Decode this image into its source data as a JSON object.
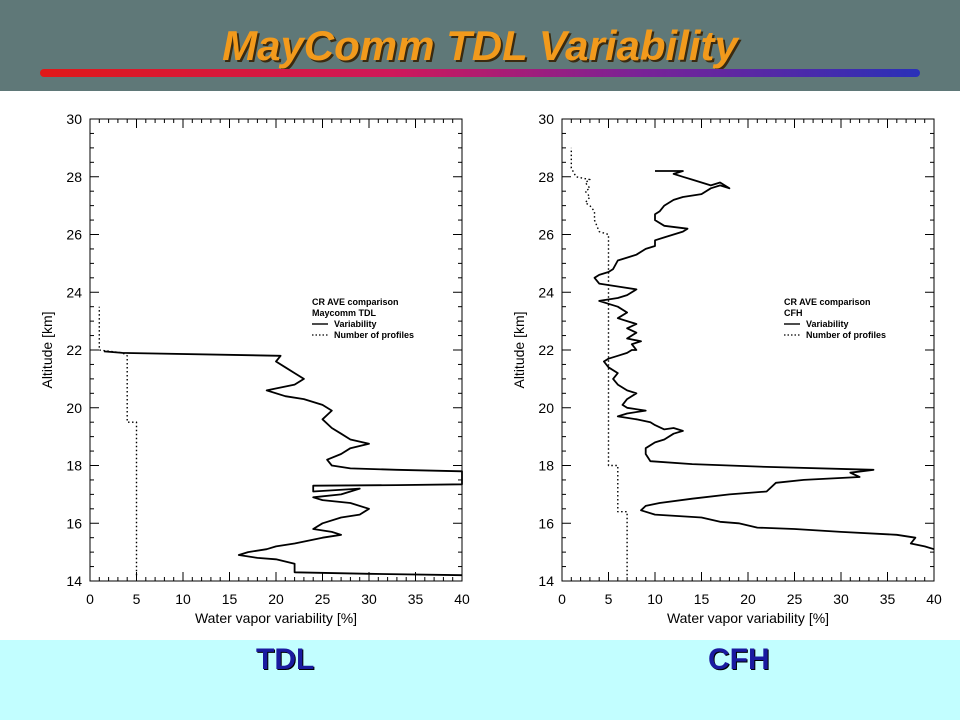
{
  "slide": {
    "title": "MayComm TDL Variability",
    "colors": {
      "header_bg": "#5f7878",
      "title": "#f29a1c",
      "footer_bg": "#c2feff",
      "panel_label": "#1a1aa0"
    }
  },
  "panels": [
    {
      "label": "TDL"
    },
    {
      "label": "CFH"
    }
  ],
  "chart_data": [
    {
      "type": "line",
      "xlabel": "Water vapor variability [%]",
      "ylabel": "Altitude [km]",
      "xlim": [
        0,
        40
      ],
      "ylim": [
        14,
        30
      ],
      "xticks": [
        0,
        5,
        10,
        15,
        20,
        25,
        30,
        35,
        40
      ],
      "yticks": [
        14,
        16,
        18,
        20,
        22,
        24,
        26,
        28,
        30
      ],
      "grid": false,
      "legend_position": "right",
      "legend": {
        "title_lines": [
          "CR AVE comparison",
          "Maycomm TDL"
        ],
        "entries": [
          "Variability",
          "Number of profiles"
        ]
      },
      "series": [
        {
          "name": "Variability",
          "style": "solid",
          "points": [
            [
              40,
              14.2
            ],
            [
              30,
              14.25
            ],
            [
              22,
              14.3
            ],
            [
              22,
              14.6
            ],
            [
              20,
              14.75
            ],
            [
              18,
              14.8
            ],
            [
              16,
              14.9
            ],
            [
              17,
              15.0
            ],
            [
              19,
              15.1
            ],
            [
              20,
              15.2
            ],
            [
              22,
              15.3
            ],
            [
              25,
              15.5
            ],
            [
              27,
              15.6
            ],
            [
              26,
              15.7
            ],
            [
              24,
              15.8
            ],
            [
              25,
              16.0
            ],
            [
              27,
              16.2
            ],
            [
              29,
              16.3
            ],
            [
              30,
              16.5
            ],
            [
              28,
              16.7
            ],
            [
              25,
              16.8
            ],
            [
              24,
              16.9
            ],
            [
              27,
              17.0
            ],
            [
              29,
              17.2
            ],
            [
              24,
              17.1
            ],
            [
              24,
              17.3
            ],
            [
              33,
              17.32
            ],
            [
              40,
              17.35
            ],
            [
              40,
              17.8
            ],
            [
              33,
              17.85
            ],
            [
              28,
              17.9
            ],
            [
              26,
              18.0
            ],
            [
              25.5,
              18.2
            ],
            [
              27,
              18.4
            ],
            [
              28,
              18.6
            ],
            [
              30,
              18.75
            ],
            [
              28,
              18.9
            ],
            [
              27,
              19.1
            ],
            [
              26,
              19.3
            ],
            [
              25,
              19.6
            ],
            [
              26,
              19.9
            ],
            [
              25,
              20.1
            ],
            [
              23,
              20.3
            ],
            [
              21,
              20.4
            ],
            [
              19,
              20.6
            ],
            [
              22,
              20.8
            ],
            [
              23,
              21.0
            ],
            [
              22,
              21.2
            ],
            [
              21,
              21.4
            ],
            [
              20,
              21.6
            ],
            [
              20.5,
              21.8
            ],
            [
              3.5,
              21.9
            ],
            [
              1.5,
              21.95
            ]
          ]
        },
        {
          "name": "Number of profiles",
          "style": "dotted",
          "points": [
            [
              5,
              14.2
            ],
            [
              5,
              19.5
            ],
            [
              4,
              19.5
            ],
            [
              4,
              21.8
            ],
            [
              3.5,
              21.9
            ],
            [
              1,
              22.0
            ],
            [
              1,
              23.5
            ]
          ]
        }
      ]
    },
    {
      "type": "line",
      "xlabel": "Water vapor variability [%]",
      "ylabel": "Altitude [km]",
      "xlim": [
        0,
        40
      ],
      "ylim": [
        14,
        30
      ],
      "xticks": [
        0,
        5,
        10,
        15,
        20,
        25,
        30,
        35,
        40
      ],
      "yticks": [
        14,
        16,
        18,
        20,
        22,
        24,
        26,
        28,
        30
      ],
      "grid": false,
      "legend_position": "right",
      "legend": {
        "title_lines": [
          "CR AVE comparison",
          "CFH"
        ],
        "entries": [
          "Variability",
          "Number of profiles"
        ]
      },
      "series": [
        {
          "name": "Variability",
          "style": "solid",
          "points": [
            [
              40,
              15.1
            ],
            [
              39,
              15.2
            ],
            [
              37.5,
              15.3
            ],
            [
              38,
              15.5
            ],
            [
              36,
              15.6
            ],
            [
              30,
              15.7
            ],
            [
              25,
              15.8
            ],
            [
              21,
              15.85
            ],
            [
              19,
              16.0
            ],
            [
              17,
              16.05
            ],
            [
              15,
              16.2
            ],
            [
              10,
              16.3
            ],
            [
              8.5,
              16.45
            ],
            [
              9,
              16.6
            ],
            [
              10.5,
              16.7
            ],
            [
              14,
              16.85
            ],
            [
              18,
              17.0
            ],
            [
              22,
              17.1
            ],
            [
              23,
              17.4
            ],
            [
              26,
              17.5
            ],
            [
              32,
              17.6
            ],
            [
              31,
              17.75
            ],
            [
              33.5,
              17.85
            ],
            [
              22,
              17.95
            ],
            [
              14,
              18.05
            ],
            [
              9.5,
              18.15
            ],
            [
              9,
              18.4
            ],
            [
              9,
              18.6
            ],
            [
              10,
              18.8
            ],
            [
              11,
              18.9
            ],
            [
              12,
              19.1
            ],
            [
              13,
              19.2
            ],
            [
              12,
              19.3
            ],
            [
              11,
              19.25
            ],
            [
              10,
              19.4
            ],
            [
              9.5,
              19.5
            ],
            [
              8,
              19.6
            ],
            [
              6,
              19.7
            ],
            [
              7,
              19.8
            ],
            [
              9,
              19.9
            ],
            [
              7,
              20.0
            ],
            [
              6.5,
              20.1
            ],
            [
              7,
              20.3
            ],
            [
              8,
              20.5
            ],
            [
              7,
              20.6
            ],
            [
              6,
              20.8
            ],
            [
              5.5,
              21.0
            ],
            [
              6,
              21.2
            ],
            [
              5,
              21.4
            ],
            [
              4.5,
              21.6
            ],
            [
              5,
              21.7
            ],
            [
              6,
              21.8
            ],
            [
              7,
              21.9
            ],
            [
              7.5,
              22.0
            ],
            [
              8,
              22.0
            ],
            [
              7.5,
              22.2
            ],
            [
              8.5,
              22.3
            ],
            [
              7,
              22.4
            ],
            [
              8,
              22.6
            ],
            [
              7,
              22.75
            ],
            [
              8,
              22.9
            ],
            [
              7,
              23.0
            ],
            [
              6,
              23.1
            ],
            [
              7,
              23.3
            ],
            [
              6,
              23.5
            ],
            [
              5,
              23.6
            ],
            [
              4,
              23.7
            ],
            [
              6,
              23.8
            ],
            [
              7,
              23.9
            ],
            [
              8,
              24.1
            ],
            [
              6,
              24.2
            ],
            [
              4,
              24.3
            ],
            [
              3.5,
              24.5
            ],
            [
              4,
              24.6
            ],
            [
              5,
              24.7
            ],
            [
              5.5,
              24.8
            ],
            [
              6,
              25.1
            ],
            [
              7,
              25.2
            ],
            [
              8,
              25.3
            ],
            [
              9,
              25.5
            ],
            [
              10,
              25.6
            ],
            [
              10,
              25.8
            ],
            [
              11,
              25.9
            ],
            [
              12,
              26.0
            ],
            [
              13,
              26.1
            ],
            [
              13.5,
              26.2
            ],
            [
              11,
              26.3
            ],
            [
              10,
              26.5
            ],
            [
              10,
              26.7
            ],
            [
              10.5,
              26.8
            ],
            [
              11,
              27.0
            ],
            [
              12,
              27.2
            ],
            [
              13,
              27.3
            ],
            [
              15,
              27.4
            ],
            [
              16,
              27.6
            ],
            [
              17,
              27.7
            ],
            [
              18,
              27.6
            ],
            [
              17,
              27.8
            ],
            [
              16,
              27.7
            ],
            [
              14,
              27.9
            ],
            [
              13,
              28.0
            ],
            [
              12,
              28.1
            ],
            [
              13,
              28.2
            ],
            [
              10,
              28.2
            ]
          ]
        },
        {
          "name": "Number of profiles",
          "style": "dotted",
          "points": [
            [
              7,
              14.2
            ],
            [
              7,
              16.4
            ],
            [
              6,
              16.4
            ],
            [
              6,
              17.0
            ],
            [
              6,
              18.0
            ],
            [
              5,
              18.0
            ],
            [
              5,
              26.0
            ],
            [
              4,
              26.1
            ],
            [
              3.5,
              26.5
            ],
            [
              3.5,
              26.8
            ],
            [
              3,
              27.0
            ],
            [
              2.5,
              27.1
            ],
            [
              3,
              27.3
            ],
            [
              2.5,
              27.5
            ],
            [
              3,
              27.6
            ],
            [
              2.5,
              27.8
            ],
            [
              3,
              27.9
            ],
            [
              1.5,
              28.0
            ],
            [
              1,
              28.3
            ],
            [
              1,
              29.0
            ]
          ]
        }
      ]
    }
  ]
}
